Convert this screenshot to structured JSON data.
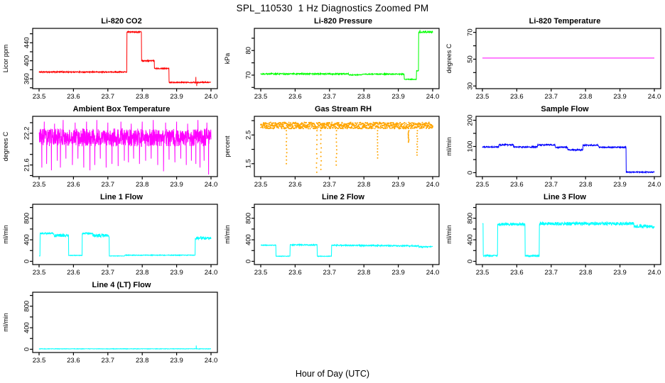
{
  "page": {
    "title": "SPL_110530  1 Hz Diagnostics Zoomed PM",
    "xlabel": "Hour of Day (UTC)",
    "background": "#FFFFFF",
    "axis_color": "#000000"
  },
  "chart_data": {
    "type": "line",
    "title": "SPL_110530  1 Hz Diagnostics Zoomed PM",
    "xlabel": "Hour of Day (UTC)",
    "x_range": [
      23.5,
      24.0
    ],
    "x_ticks": [
      {
        "v": 23.5,
        "t": "23.5"
      },
      {
        "v": 23.6,
        "t": "23.6"
      },
      {
        "v": 23.7,
        "t": "23.7"
      },
      {
        "v": 23.8,
        "t": "23.8"
      },
      {
        "v": 23.9,
        "t": "23.9"
      },
      {
        "v": 24.0,
        "t": "24.0"
      }
    ],
    "grid": false,
    "legend": "none",
    "panels": [
      {
        "id": "li-820-co2",
        "title": "Li-820 CO2",
        "ylabel": "Licor ppm",
        "color": "#FF0000",
        "style": "line",
        "ylim": [
          338,
          472
        ],
        "yticks": [
          {
            "v": 340,
            "t": ""
          },
          {
            "v": 360,
            "t": "360"
          },
          {
            "v": 380,
            "t": ""
          },
          {
            "v": 400,
            "t": "400"
          },
          {
            "v": 420,
            "t": ""
          },
          {
            "v": 440,
            "t": "440"
          },
          {
            "v": 460,
            "t": ""
          }
        ],
        "segments": [
          [
            23.5,
            23.755,
            375,
            375,
            1.2
          ],
          [
            23.755,
            23.798,
            464,
            464,
            1.5
          ],
          [
            23.798,
            23.835,
            400,
            400,
            1.2
          ],
          [
            23.835,
            23.878,
            383,
            383,
            1.2
          ],
          [
            23.878,
            24.0,
            352,
            352,
            1.2
          ]
        ],
        "spikes": [
          [
            23.956,
            364
          ],
          [
            23.9585,
            344
          ]
        ]
      },
      {
        "id": "li-820-pressure",
        "title": "Li-820 Pressure",
        "ylabel": "kPa",
        "color": "#00FF00",
        "style": "line",
        "ylim": [
          64.5,
          89
        ],
        "yticks": [
          {
            "v": 65,
            "t": ""
          },
          {
            "v": 70,
            "t": "70"
          },
          {
            "v": 75,
            "t": ""
          },
          {
            "v": 80,
            "t": "80"
          },
          {
            "v": 85,
            "t": ""
          }
        ],
        "segments": [
          [
            23.5,
            23.755,
            70.5,
            70.5,
            0.25
          ],
          [
            23.755,
            23.795,
            70.1,
            70.1,
            0.2
          ],
          [
            23.795,
            23.917,
            70.4,
            70.4,
            0.2
          ],
          [
            23.917,
            23.953,
            68.3,
            68.3,
            0.15
          ],
          [
            23.953,
            23.959,
            71.8,
            71.8,
            0.2
          ],
          [
            23.959,
            24.0,
            87.5,
            87.5,
            0.35
          ]
        ],
        "spikes": [
          [
            23.963,
            88.4
          ]
        ]
      },
      {
        "id": "li-820-temperature",
        "title": "Li-820 Temperature",
        "ylabel": "degrees C",
        "color": "#FF00FF",
        "style": "line",
        "ylim": [
          28,
          73
        ],
        "yticks": [
          {
            "v": 30,
            "t": "30"
          },
          {
            "v": 40,
            "t": ""
          },
          {
            "v": 50,
            "t": "50"
          },
          {
            "v": 60,
            "t": ""
          },
          {
            "v": 70,
            "t": "70"
          }
        ],
        "segments": [
          [
            23.5,
            24.0,
            50.8,
            50.8,
            0.0
          ]
        ],
        "spikes": []
      },
      {
        "id": "ambient-box-temperature",
        "title": "Ambient Box Temperature",
        "ylabel": "degrees C",
        "color": "#FF00FF",
        "style": "line",
        "ylim": [
          21.38,
          22.52
        ],
        "yticks": [
          {
            "v": 21.4,
            "t": ""
          },
          {
            "v": 21.6,
            "t": "21.6"
          },
          {
            "v": 21.8,
            "t": ""
          },
          {
            "v": 22.0,
            "t": ""
          },
          {
            "v": 22.2,
            "t": "22.2"
          },
          {
            "v": 22.4,
            "t": ""
          }
        ],
        "segments": [
          [
            23.5,
            24.0,
            22.12,
            22.12,
            0.17
          ]
        ],
        "spikes": [
          [
            23.508,
            21.55
          ],
          [
            23.515,
            22.42
          ],
          [
            23.522,
            21.62
          ],
          [
            23.536,
            21.5
          ],
          [
            23.545,
            22.38
          ],
          [
            23.553,
            21.68
          ],
          [
            23.562,
            21.55
          ],
          [
            23.57,
            22.45
          ],
          [
            23.578,
            21.72
          ],
          [
            23.597,
            21.6
          ],
          [
            23.605,
            22.4
          ],
          [
            23.613,
            21.72
          ],
          [
            23.63,
            21.55
          ],
          [
            23.638,
            22.42
          ],
          [
            23.648,
            21.5
          ],
          [
            23.662,
            21.6
          ],
          [
            23.668,
            22.45
          ],
          [
            23.678,
            21.72
          ],
          [
            23.695,
            21.55
          ],
          [
            23.7,
            22.4
          ],
          [
            23.712,
            21.62
          ],
          [
            23.73,
            21.58
          ],
          [
            23.738,
            22.42
          ],
          [
            23.748,
            21.68
          ],
          [
            23.76,
            21.65
          ],
          [
            23.768,
            22.38
          ],
          [
            23.775,
            21.72
          ],
          [
            23.792,
            21.62
          ],
          [
            23.8,
            22.42
          ],
          [
            23.81,
            21.68
          ],
          [
            23.826,
            21.72
          ],
          [
            23.832,
            22.45
          ],
          [
            23.845,
            21.6
          ],
          [
            23.862,
            21.48
          ],
          [
            23.868,
            22.4
          ],
          [
            23.878,
            21.7
          ],
          [
            23.895,
            21.65
          ],
          [
            23.9,
            22.42
          ],
          [
            23.912,
            21.72
          ],
          [
            23.928,
            21.6
          ],
          [
            23.932,
            22.38
          ],
          [
            23.943,
            21.68
          ],
          [
            23.956,
            21.62
          ],
          [
            23.962,
            22.45
          ],
          [
            23.968,
            21.55
          ],
          [
            23.98,
            21.68
          ],
          [
            23.988,
            22.4
          ],
          [
            23.993,
            21.42
          ]
        ]
      },
      {
        "id": "gas-stream-rh",
        "title": "Gas Stream RH",
        "ylabel": "percent",
        "color": "#FFA500",
        "style": "dots",
        "ylim": [
          1.05,
          3.15
        ],
        "yticks": [
          {
            "v": 1.5,
            "t": "1.5"
          },
          {
            "v": 2.0,
            "t": ""
          },
          {
            "v": 2.5,
            "t": "2.5"
          },
          {
            "v": 3.0,
            "t": ""
          }
        ],
        "segments": [
          [
            23.5,
            24.0,
            2.83,
            2.83,
            0.11
          ]
        ],
        "spikes": [
          [
            23.575,
            1.5
          ],
          [
            23.663,
            1.2
          ],
          [
            23.675,
            1.3
          ],
          [
            23.72,
            1.45
          ],
          [
            23.84,
            1.7
          ],
          [
            23.93,
            2.25
          ],
          [
            23.955,
            1.8
          ]
        ]
      },
      {
        "id": "sample-flow",
        "title": "Sample Flow",
        "ylabel": "ml/min",
        "color": "#0000FF",
        "style": "line",
        "ylim": [
          -15,
          215
        ],
        "yticks": [
          {
            "v": 0,
            "t": "0"
          },
          {
            "v": 50,
            "t": ""
          },
          {
            "v": 100,
            "t": "100"
          },
          {
            "v": 150,
            "t": ""
          },
          {
            "v": 200,
            "t": "200"
          }
        ],
        "segments": [
          [
            23.5,
            23.548,
            98,
            98,
            2.5
          ],
          [
            23.548,
            23.59,
            106,
            106,
            2.5
          ],
          [
            23.59,
            23.66,
            98,
            98,
            2.5
          ],
          [
            23.66,
            23.712,
            106,
            106,
            2.5
          ],
          [
            23.712,
            23.748,
            97,
            97,
            2.5
          ],
          [
            23.748,
            23.792,
            87,
            87,
            2.5
          ],
          [
            23.792,
            23.838,
            105,
            105,
            2.5
          ],
          [
            23.838,
            23.918,
            97,
            97,
            2.5
          ],
          [
            23.918,
            24.0,
            2,
            2,
            2
          ]
        ],
        "spikes": []
      },
      {
        "id": "line-1-flow",
        "title": "Line 1 Flow",
        "ylabel": "ml/min",
        "color": "#00FFFF",
        "style": "line",
        "ylim": [
          -60,
          1060
        ],
        "yticks": [
          {
            "v": 0,
            "t": "0"
          },
          {
            "v": 200,
            "t": ""
          },
          {
            "v": 400,
            "t": "400"
          },
          {
            "v": 600,
            "t": ""
          },
          {
            "v": 800,
            "t": "800"
          },
          {
            "v": 1000,
            "t": ""
          }
        ],
        "segments": [
          [
            23.5,
            23.503,
            100,
            100,
            0
          ],
          [
            23.503,
            23.542,
            520,
            520,
            14
          ],
          [
            23.542,
            23.586,
            480,
            480,
            26
          ],
          [
            23.586,
            23.625,
            110,
            110,
            5
          ],
          [
            23.625,
            23.656,
            520,
            520,
            14
          ],
          [
            23.656,
            23.704,
            480,
            480,
            28
          ],
          [
            23.704,
            23.749,
            100,
            100,
            4
          ],
          [
            23.749,
            23.954,
            114,
            114,
            6
          ],
          [
            23.954,
            24.0,
            430,
            430,
            28
          ]
        ],
        "spikes": []
      },
      {
        "id": "line-2-flow",
        "title": "Line 2 Flow",
        "ylabel": "ml/min",
        "color": "#00FFFF",
        "style": "line",
        "ylim": [
          -60,
          1060
        ],
        "yticks": [
          {
            "v": 0,
            "t": "0"
          },
          {
            "v": 200,
            "t": ""
          },
          {
            "v": 400,
            "t": "400"
          },
          {
            "v": 600,
            "t": ""
          },
          {
            "v": 800,
            "t": "800"
          },
          {
            "v": 1000,
            "t": ""
          }
        ],
        "segments": [
          [
            23.5,
            23.544,
            300,
            300,
            7
          ],
          [
            23.544,
            23.585,
            95,
            95,
            5
          ],
          [
            23.585,
            23.664,
            305,
            305,
            10
          ],
          [
            23.664,
            23.706,
            95,
            95,
            5
          ],
          [
            23.706,
            23.96,
            298,
            286,
            12
          ],
          [
            23.96,
            24.0,
            268,
            268,
            13
          ]
        ],
        "spikes": []
      },
      {
        "id": "line-3-flow",
        "title": "Line 3 Flow",
        "ylabel": "ml/min",
        "color": "#00FFFF",
        "style": "line",
        "ylim": [
          -60,
          1060
        ],
        "yticks": [
          {
            "v": 0,
            "t": "0"
          },
          {
            "v": 200,
            "t": ""
          },
          {
            "v": 400,
            "t": "400"
          },
          {
            "v": 600,
            "t": ""
          },
          {
            "v": 800,
            "t": "800"
          },
          {
            "v": 1000,
            "t": ""
          }
        ],
        "segments": [
          [
            23.5,
            23.502,
            700,
            700,
            0
          ],
          [
            23.502,
            23.544,
            105,
            105,
            14
          ],
          [
            23.544,
            23.624,
            690,
            690,
            26
          ],
          [
            23.624,
            23.665,
            100,
            100,
            14
          ],
          [
            23.665,
            23.94,
            700,
            700,
            30
          ],
          [
            23.94,
            24.0,
            650,
            650,
            35
          ]
        ],
        "spikes": []
      },
      {
        "id": "line-4-lt-flow",
        "title": "Line 4 (LT) Flow",
        "ylabel": "ml/min",
        "color": "#00FFFF",
        "style": "line",
        "ylim": [
          -60,
          1060
        ],
        "yticks": [
          {
            "v": 0,
            "t": "0"
          },
          {
            "v": 200,
            "t": ""
          },
          {
            "v": 400,
            "t": "400"
          },
          {
            "v": 600,
            "t": ""
          },
          {
            "v": 800,
            "t": "800"
          },
          {
            "v": 1000,
            "t": ""
          }
        ],
        "segments": [
          [
            23.5,
            24.0,
            8,
            8,
            4
          ]
        ],
        "spikes": [
          [
            23.957,
            70
          ]
        ]
      }
    ]
  }
}
